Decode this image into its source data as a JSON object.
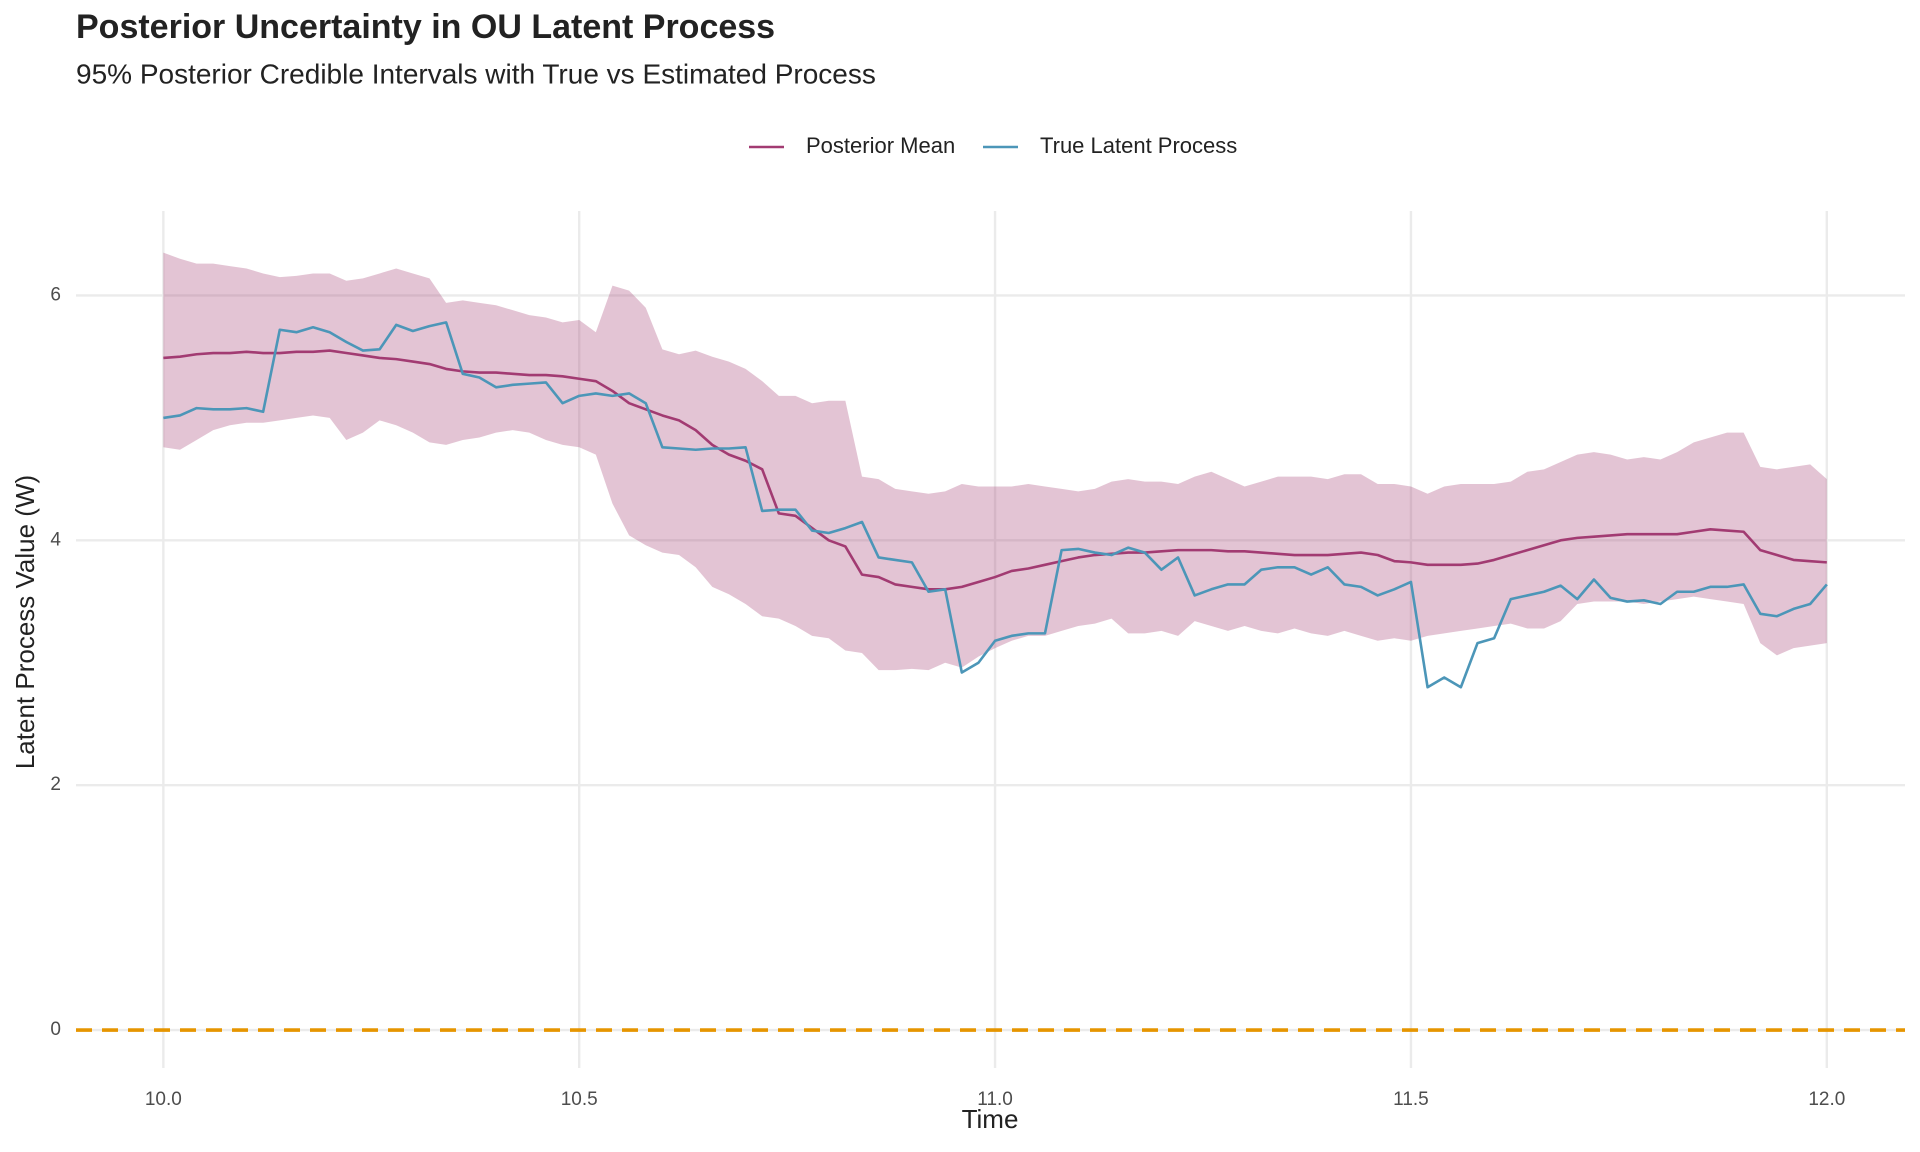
{
  "chart_data": {
    "type": "line",
    "title": "Posterior Uncertainty in OU Latent Process",
    "subtitle": "95% Posterior Credible Intervals with True vs Estimated Process",
    "xlabel": "Time",
    "ylabel": "Latent Process Value (W)",
    "x": [
      10.0,
      10.02,
      10.04,
      10.06,
      10.08,
      10.1,
      10.12,
      10.14,
      10.16,
      10.18,
      10.2,
      10.22,
      10.24,
      10.26,
      10.28,
      10.3,
      10.32,
      10.34,
      10.36,
      10.38,
      10.4,
      10.42,
      10.44,
      10.46,
      10.48,
      10.5,
      10.52,
      10.54,
      10.56,
      10.58,
      10.6,
      10.62,
      10.64,
      10.66,
      10.68,
      10.7,
      10.72,
      10.74,
      10.76,
      10.78,
      10.8,
      10.82,
      10.84,
      10.86,
      10.88,
      10.9,
      10.92,
      10.94,
      10.96,
      10.98,
      11.0,
      11.02,
      11.04,
      11.06,
      11.08,
      11.1,
      11.12,
      11.14,
      11.16,
      11.18,
      11.2,
      11.22,
      11.24,
      11.26,
      11.28,
      11.3,
      11.32,
      11.34,
      11.36,
      11.38,
      11.4,
      11.42,
      11.44,
      11.46,
      11.48,
      11.5,
      11.52,
      11.54,
      11.56,
      11.58,
      11.6,
      11.62,
      11.64,
      11.66,
      11.68,
      11.7,
      11.72,
      11.74,
      11.76,
      11.78,
      11.8,
      11.82,
      11.84,
      11.86,
      11.88,
      11.9,
      11.92,
      11.94,
      11.96,
      11.98,
      12.0
    ],
    "interval": {
      "color": "#a23b72",
      "upper": [
        6.35,
        6.3,
        6.26,
        6.26,
        6.24,
        6.22,
        6.18,
        6.15,
        6.16,
        6.18,
        6.18,
        6.12,
        6.14,
        6.18,
        6.22,
        6.18,
        6.14,
        5.94,
        5.96,
        5.94,
        5.92,
        5.88,
        5.84,
        5.82,
        5.78,
        5.8,
        5.7,
        6.08,
        6.04,
        5.9,
        5.56,
        5.52,
        5.55,
        5.5,
        5.46,
        5.4,
        5.3,
        5.18,
        5.18,
        5.12,
        5.14,
        5.14,
        4.52,
        4.5,
        4.42,
        4.4,
        4.38,
        4.4,
        4.46,
        4.44,
        4.44,
        4.44,
        4.46,
        4.44,
        4.42,
        4.4,
        4.42,
        4.48,
        4.5,
        4.48,
        4.48,
        4.46,
        4.52,
        4.56,
        4.5,
        4.44,
        4.48,
        4.52,
        4.52,
        4.52,
        4.5,
        4.54,
        4.54,
        4.46,
        4.46,
        4.44,
        4.38,
        4.44,
        4.46,
        4.46,
        4.46,
        4.48,
        4.56,
        4.58,
        4.64,
        4.7,
        4.72,
        4.7,
        4.66,
        4.68,
        4.66,
        4.72,
        4.8,
        4.84,
        4.88,
        4.88,
        4.6,
        4.58,
        4.6,
        4.62,
        4.5
      ],
      "lower": [
        4.76,
        4.74,
        4.82,
        4.9,
        4.94,
        4.96,
        4.96,
        4.98,
        5.0,
        5.02,
        5.0,
        4.82,
        4.88,
        4.98,
        4.94,
        4.88,
        4.8,
        4.78,
        4.82,
        4.84,
        4.88,
        4.9,
        4.88,
        4.82,
        4.78,
        4.76,
        4.7,
        4.3,
        4.04,
        3.96,
        3.9,
        3.88,
        3.78,
        3.62,
        3.56,
        3.48,
        3.38,
        3.36,
        3.3,
        3.22,
        3.2,
        3.1,
        3.08,
        2.94,
        2.94,
        2.95,
        2.94,
        3.0,
        2.96,
        3.05,
        3.12,
        3.18,
        3.22,
        3.22,
        3.26,
        3.3,
        3.32,
        3.36,
        3.24,
        3.24,
        3.26,
        3.22,
        3.34,
        3.3,
        3.26,
        3.3,
        3.26,
        3.24,
        3.28,
        3.24,
        3.22,
        3.26,
        3.22,
        3.18,
        3.2,
        3.18,
        3.22,
        3.24,
        3.26,
        3.28,
        3.3,
        3.32,
        3.28,
        3.28,
        3.34,
        3.48,
        3.5,
        3.5,
        3.5,
        3.48,
        3.5,
        3.52,
        3.54,
        3.52,
        3.5,
        3.48,
        3.16,
        3.06,
        3.12,
        3.14,
        3.16
      ]
    },
    "series": [
      {
        "name": "Posterior Mean",
        "color": "#a23b72",
        "values": [
          5.49,
          5.5,
          5.52,
          5.53,
          5.53,
          5.54,
          5.53,
          5.53,
          5.54,
          5.54,
          5.55,
          5.53,
          5.51,
          5.49,
          5.48,
          5.46,
          5.44,
          5.4,
          5.38,
          5.37,
          5.37,
          5.36,
          5.35,
          5.35,
          5.34,
          5.32,
          5.3,
          5.22,
          5.12,
          5.07,
          5.02,
          4.98,
          4.9,
          4.78,
          4.7,
          4.65,
          4.58,
          4.22,
          4.2,
          4.1,
          4.0,
          3.95,
          3.72,
          3.7,
          3.64,
          3.62,
          3.6,
          3.6,
          3.62,
          3.66,
          3.7,
          3.75,
          3.77,
          3.8,
          3.83,
          3.86,
          3.88,
          3.89,
          3.9,
          3.9,
          3.91,
          3.92,
          3.92,
          3.92,
          3.91,
          3.91,
          3.9,
          3.89,
          3.88,
          3.88,
          3.88,
          3.89,
          3.9,
          3.88,
          3.83,
          3.82,
          3.8,
          3.8,
          3.8,
          3.81,
          3.84,
          3.88,
          3.92,
          3.96,
          4.0,
          4.02,
          4.03,
          4.04,
          4.05,
          4.05,
          4.05,
          4.05,
          4.07,
          4.09,
          4.08,
          4.07,
          3.92,
          3.88,
          3.84,
          3.83,
          3.82
        ]
      },
      {
        "name": "True Latent Process",
        "color": "#4c96b8",
        "values": [
          5.0,
          5.02,
          5.08,
          5.07,
          5.07,
          5.08,
          5.05,
          5.72,
          5.7,
          5.74,
          5.7,
          5.62,
          5.55,
          5.56,
          5.76,
          5.71,
          5.75,
          5.78,
          5.36,
          5.33,
          5.25,
          5.27,
          5.28,
          5.29,
          5.12,
          5.18,
          5.2,
          5.18,
          5.2,
          5.12,
          4.76,
          4.75,
          4.74,
          4.75,
          4.75,
          4.76,
          4.24,
          4.25,
          4.25,
          4.08,
          4.06,
          4.1,
          4.15,
          3.86,
          3.84,
          3.82,
          3.58,
          3.6,
          2.92,
          3.0,
          3.18,
          3.22,
          3.24,
          3.24,
          3.92,
          3.93,
          3.9,
          3.88,
          3.94,
          3.9,
          3.76,
          3.86,
          3.55,
          3.6,
          3.64,
          3.64,
          3.76,
          3.78,
          3.78,
          3.72,
          3.78,
          3.64,
          3.62,
          3.55,
          3.6,
          3.66,
          2.8,
          2.88,
          2.8,
          3.16,
          3.2,
          3.52,
          3.55,
          3.58,
          3.63,
          3.52,
          3.68,
          3.53,
          3.5,
          3.51,
          3.48,
          3.58,
          3.58,
          3.62,
          3.62,
          3.64,
          3.4,
          3.38,
          3.44,
          3.48,
          3.64
        ]
      }
    ],
    "hline": {
      "value": 0,
      "color": "#e69500"
    },
    "xlim": [
      9.895,
      12.094
    ],
    "ylim": [
      -0.31,
      6.69
    ],
    "xticks": [
      {
        "value": 10,
        "label": "10.0"
      },
      10.5,
      {
        "value": 11,
        "label": "11.0"
      },
      11.5,
      {
        "value": 12,
        "label": "12.0"
      }
    ],
    "yticks": [
      0,
      2,
      4,
      6
    ],
    "grid": true
  }
}
